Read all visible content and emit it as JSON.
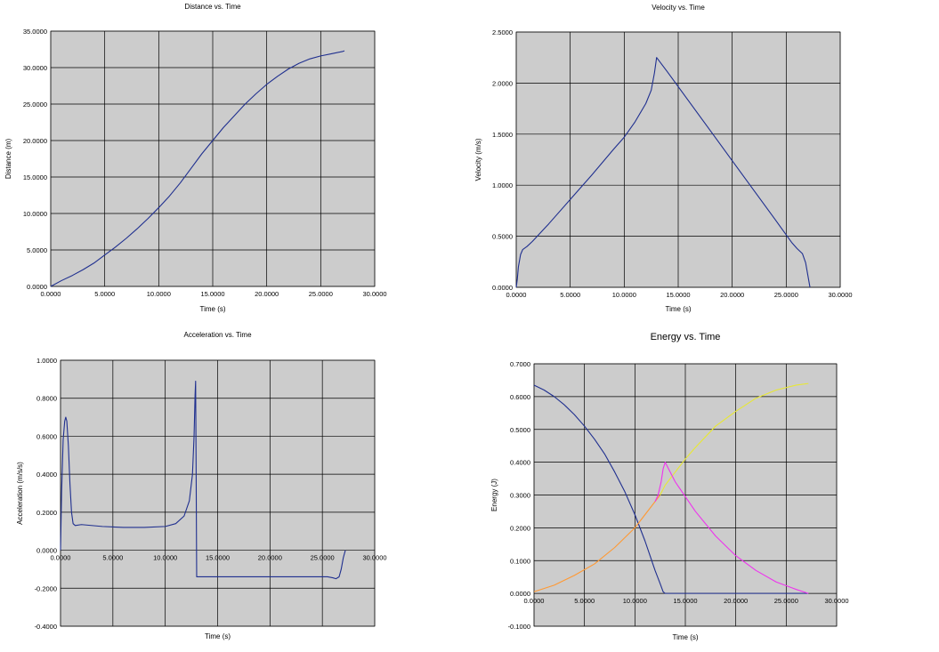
{
  "chart_data": [
    {
      "type": "line",
      "title": "Distance vs. Time",
      "xlabel": "Time (s)",
      "ylabel": "Distance (m)",
      "xlim": [
        0,
        30
      ],
      "ylim": [
        0,
        35
      ],
      "xticks": [
        0,
        5,
        10,
        15,
        20,
        25,
        30
      ],
      "yticks": [
        0,
        5,
        10,
        15,
        20,
        25,
        30,
        35
      ],
      "tick_labels_x": [
        "0.0000",
        "5.0000",
        "10.0000",
        "15.0000",
        "20.0000",
        "25.0000",
        "30.0000"
      ],
      "tick_labels_y": [
        "0.0000",
        "5.0000",
        "10.0000",
        "15.0000",
        "20.0000",
        "25.0000",
        "30.0000",
        "35.0000"
      ],
      "grid": true,
      "series": [
        {
          "color": "#1f2f8f",
          "x": [
            0,
            1,
            2,
            3,
            4,
            5,
            6,
            7,
            8,
            9,
            10,
            11,
            12,
            13,
            14,
            15,
            16,
            17,
            18,
            19,
            20,
            21,
            22,
            23,
            24,
            25,
            26,
            27,
            27.2
          ],
          "y": [
            0,
            0.8,
            1.5,
            2.3,
            3.2,
            4.3,
            5.4,
            6.6,
            7.9,
            9.3,
            10.8,
            12.4,
            14.2,
            16.2,
            18.2,
            20.0,
            21.8,
            23.4,
            25.0,
            26.4,
            27.7,
            28.8,
            29.8,
            30.6,
            31.2,
            31.6,
            31.9,
            32.2,
            32.3
          ]
        }
      ]
    },
    {
      "type": "line",
      "title": "Velocity vs. Time",
      "xlabel": "Time (s)",
      "ylabel": "Velocity (m/s)",
      "xlim": [
        0,
        30
      ],
      "ylim": [
        0,
        2.5
      ],
      "xticks": [
        0,
        5,
        10,
        15,
        20,
        25,
        30
      ],
      "yticks": [
        0,
        0.5,
        1,
        1.5,
        2,
        2.5
      ],
      "tick_labels_x": [
        "0.0000",
        "5.0000",
        "10.0000",
        "15.0000",
        "20.0000",
        "25.0000",
        "30.0000"
      ],
      "tick_labels_y": [
        "0.0000",
        "0.5000",
        "1.0000",
        "1.5000",
        "2.0000",
        "2.5000"
      ],
      "grid": true,
      "series": [
        {
          "color": "#1f2f8f",
          "x": [
            0,
            0.1,
            0.2,
            0.4,
            0.6,
            1.0,
            1.5,
            3,
            5,
            7,
            9,
            10,
            11,
            12,
            12.5,
            12.8,
            13.0,
            14,
            16,
            18,
            20,
            22,
            24,
            25.5,
            26.0,
            26.5,
            26.8,
            27.0,
            27.2
          ],
          "y": [
            0,
            0.08,
            0.2,
            0.32,
            0.37,
            0.4,
            0.45,
            0.62,
            0.86,
            1.1,
            1.35,
            1.47,
            1.62,
            1.8,
            1.93,
            2.1,
            2.25,
            2.11,
            1.82,
            1.53,
            1.24,
            0.95,
            0.66,
            0.44,
            0.38,
            0.33,
            0.24,
            0.12,
            0
          ]
        }
      ]
    },
    {
      "type": "line",
      "title": "Acceleration vs. Time",
      "xlabel": "Time (s)",
      "ylabel": "Acceleration (m/s/s)",
      "xlim": [
        0,
        30
      ],
      "ylim": [
        -0.4,
        1
      ],
      "xticks": [
        0,
        5,
        10,
        15,
        20,
        25,
        30
      ],
      "yticks": [
        -0.4,
        -0.2,
        0,
        0.2,
        0.4,
        0.6,
        0.8,
        1
      ],
      "tick_labels_x": [
        "0.0000",
        "5.0000",
        "10.0000",
        "15.0000",
        "20.0000",
        "25.0000",
        "30.0000"
      ],
      "tick_labels_y": [
        "-0.4000",
        "-0.2000",
        "0.0000",
        "0.2000",
        "0.4000",
        "0.6000",
        "0.8000",
        "1.0000"
      ],
      "grid": true,
      "series": [
        {
          "color": "#1f2f8f",
          "x": [
            0,
            0.1,
            0.25,
            0.4,
            0.5,
            0.6,
            0.75,
            0.9,
            1.05,
            1.2,
            1.4,
            2,
            4,
            6,
            8,
            10,
            11,
            11.8,
            12.3,
            12.6,
            12.75,
            12.85,
            12.9,
            12.95,
            13.0,
            16,
            20,
            24,
            25.5,
            26,
            26.3,
            26.6,
            26.8,
            27.0,
            27.2
          ],
          "y": [
            0,
            0.3,
            0.58,
            0.68,
            0.7,
            0.68,
            0.55,
            0.35,
            0.2,
            0.14,
            0.13,
            0.135,
            0.125,
            0.12,
            0.12,
            0.125,
            0.14,
            0.18,
            0.26,
            0.4,
            0.6,
            0.82,
            0.89,
            0.4,
            -0.14,
            -0.14,
            -0.14,
            -0.14,
            -0.14,
            -0.145,
            -0.15,
            -0.14,
            -0.1,
            -0.04,
            0
          ]
        }
      ]
    },
    {
      "type": "line",
      "title": "Energy vs. Time",
      "xlabel": "Time (s)",
      "ylabel": "Energy (J)",
      "xlim": [
        0,
        30
      ],
      "ylim": [
        -0.1,
        0.7
      ],
      "xticks": [
        0,
        5,
        10,
        15,
        20,
        25,
        30
      ],
      "yticks": [
        -0.1,
        0,
        0.1,
        0.2,
        0.3,
        0.4,
        0.5,
        0.6,
        0.7
      ],
      "tick_labels_x": [
        "0.0000",
        "5.0000",
        "10.0000",
        "15.0000",
        "20.0000",
        "25.0000",
        "30.0000"
      ],
      "tick_labels_y": [
        "-0.1000",
        "0.0000",
        "0.1000",
        "0.2000",
        "0.3000",
        "0.4000",
        "0.5000",
        "0.6000",
        "0.7000"
      ],
      "grid": true,
      "series": [
        {
          "color": "#1f2f8f",
          "x": [
            0,
            1,
            2,
            3,
            4,
            5,
            6,
            7,
            8,
            9,
            10,
            11,
            11.5,
            12,
            12.5,
            12.8,
            13.0,
            14,
            18,
            22,
            27.2
          ],
          "y": [
            0.635,
            0.62,
            0.6,
            0.575,
            0.545,
            0.51,
            0.47,
            0.425,
            0.37,
            0.31,
            0.24,
            0.16,
            0.115,
            0.07,
            0.03,
            0.005,
            0,
            0,
            0,
            0,
            0
          ]
        },
        {
          "color": "#ff9933",
          "x": [
            0,
            2,
            4,
            6,
            8,
            10,
            11,
            12,
            12.5
          ],
          "y": [
            0.005,
            0.025,
            0.055,
            0.09,
            0.14,
            0.2,
            0.24,
            0.28,
            0.3
          ]
        },
        {
          "color": "#e8e832",
          "x": [
            12.5,
            13,
            14,
            15,
            16,
            18,
            20,
            22,
            24,
            26,
            27.2
          ],
          "y": [
            0.3,
            0.33,
            0.37,
            0.41,
            0.445,
            0.51,
            0.555,
            0.595,
            0.62,
            0.635,
            0.64
          ]
        },
        {
          "color": "#ee33ee",
          "x": [
            12.0,
            12.3,
            12.6,
            12.8,
            13.0,
            14,
            16,
            18,
            20,
            22,
            24,
            26,
            27.2
          ],
          "y": [
            0.28,
            0.3,
            0.34,
            0.38,
            0.4,
            0.34,
            0.25,
            0.175,
            0.115,
            0.07,
            0.035,
            0.012,
            0
          ]
        }
      ]
    }
  ]
}
